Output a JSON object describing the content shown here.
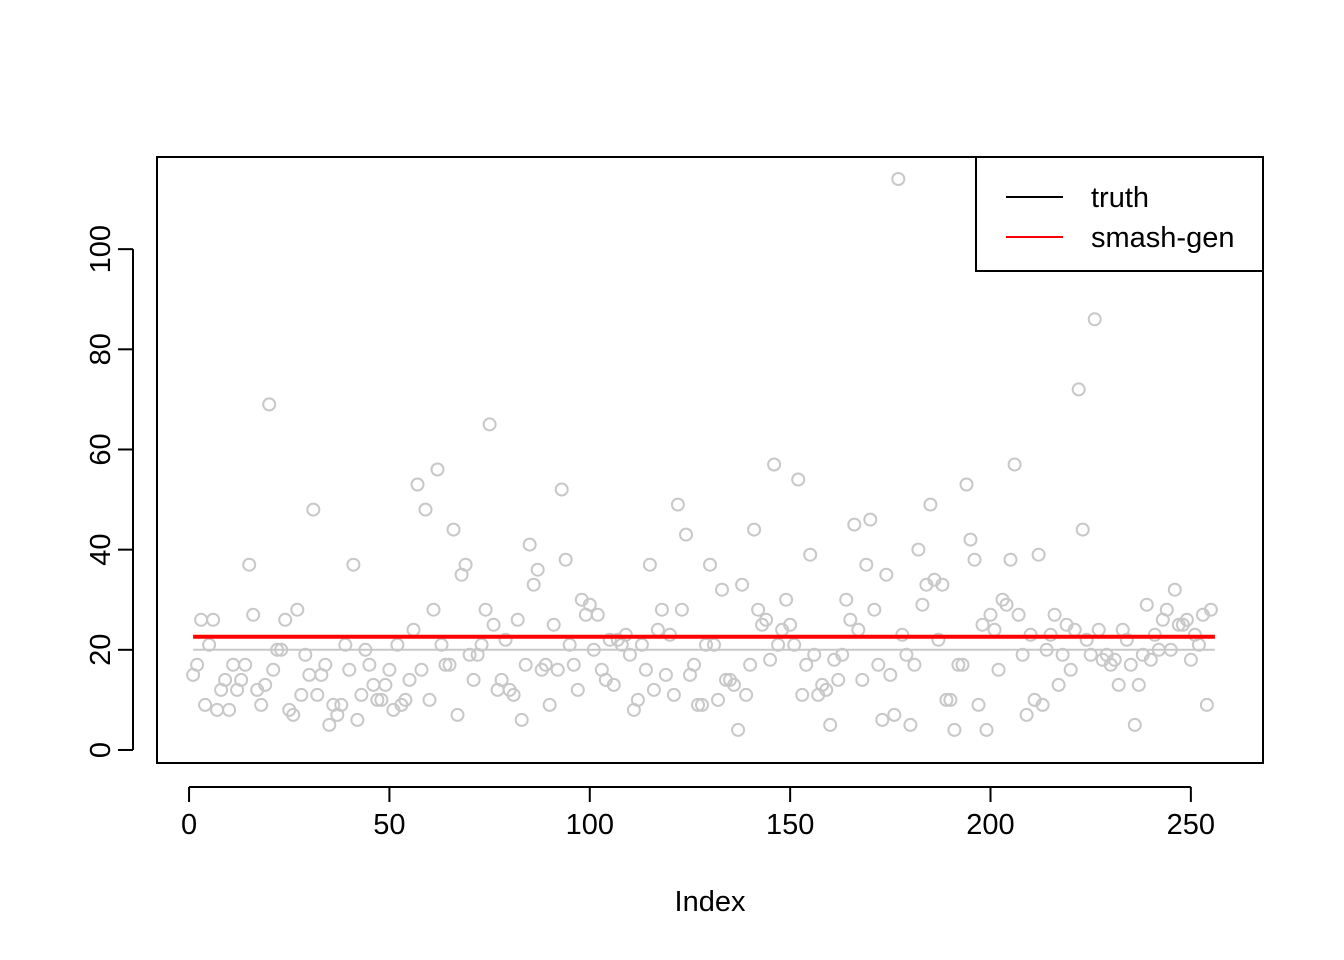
{
  "chart_data": {
    "type": "scatter",
    "xlabel": "Index",
    "ylabel": "",
    "title": "",
    "xlim": [
      -8,
      268
    ],
    "ylim": [
      -2.6,
      118.4
    ],
    "x_ticks": [
      0,
      50,
      100,
      150,
      200,
      250
    ],
    "y_ticks": [
      0,
      20,
      40,
      60,
      80,
      100
    ],
    "grid": false,
    "legend_position": "top-right",
    "point_color": "#c8c8c8",
    "points_x_start": 1,
    "points": [
      15,
      17,
      26,
      9,
      21,
      26,
      8,
      12,
      14,
      8,
      17,
      12,
      14,
      17,
      37,
      27,
      12,
      9,
      13,
      69,
      16,
      20,
      20,
      26,
      8,
      7,
      28,
      11,
      19,
      15,
      48,
      11,
      15,
      17,
      5,
      9,
      7,
      9,
      21,
      16,
      37,
      6,
      11,
      20,
      17,
      13,
      10,
      10,
      13,
      16,
      8,
      21,
      9,
      10,
      14,
      24,
      53,
      16,
      48,
      10,
      28,
      56,
      21,
      17,
      17,
      44,
      7,
      35,
      37,
      19,
      14,
      19,
      21,
      28,
      65,
      25,
      12,
      14,
      22,
      12,
      11,
      26,
      6,
      17,
      41,
      33,
      36,
      16,
      17,
      9,
      25,
      16,
      52,
      38,
      21,
      17,
      12,
      30,
      27,
      29,
      20,
      27,
      16,
      14,
      22,
      13,
      22,
      21,
      23,
      19,
      8,
      10,
      21,
      16,
      37,
      12,
      24,
      28,
      15,
      23,
      11,
      49,
      28,
      43,
      15,
      17,
      9,
      9,
      21,
      37,
      21,
      10,
      32,
      14,
      14,
      13,
      4,
      33,
      11,
      17,
      44,
      28,
      25,
      26,
      18,
      57,
      21,
      24,
      30,
      25,
      21,
      54,
      11,
      17,
      39,
      19,
      11,
      13,
      12,
      5,
      18,
      14,
      19,
      30,
      26,
      45,
      24,
      14,
      37,
      46,
      28,
      17,
      6,
      35,
      15,
      7,
      114,
      23,
      19,
      5,
      17,
      40,
      29,
      33,
      49,
      34,
      22,
      33,
      10,
      10,
      4,
      17,
      17,
      53,
      42,
      38,
      9,
      25,
      4,
      27,
      24,
      16,
      30,
      29,
      38,
      57,
      27,
      19,
      7,
      23,
      10,
      39,
      9,
      20,
      23,
      27,
      13,
      19,
      25,
      16,
      24,
      72,
      44,
      22,
      19,
      86,
      24,
      18,
      19,
      17,
      18,
      13,
      24,
      22,
      17,
      5,
      13,
      19,
      29,
      18,
      23,
      20,
      26,
      28,
      20,
      32,
      25,
      25,
      26,
      18,
      23,
      21,
      27,
      9,
      28
    ],
    "series": [
      {
        "name": "truth",
        "color": "#000000",
        "display_color": "#c8c8c8",
        "width": 2,
        "x": [
          1,
          256
        ],
        "values": [
          20,
          20
        ]
      },
      {
        "name": "smash-gen",
        "color": "#ff0000",
        "display_color": "#ff0000",
        "width": 4,
        "x": [
          1,
          256
        ],
        "values": [
          22.6,
          22.6
        ]
      }
    ]
  }
}
